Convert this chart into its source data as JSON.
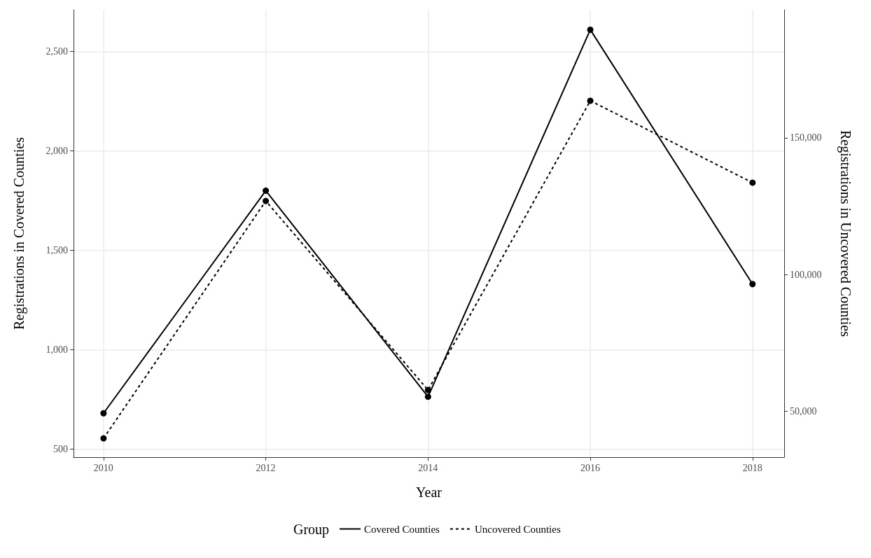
{
  "chart_data": {
    "type": "line",
    "xlabel": "Year",
    "ylabel": "Registrations in Covered Counties",
    "y2label": "Registrations in Uncovered Counties",
    "legend_title": "Group",
    "x": [
      2010,
      2012,
      2014,
      2016,
      2018
    ],
    "series": [
      {
        "name": "Covered Counties",
        "color": "#000000",
        "line_style": "solid",
        "values": [
          680,
          1800,
          763,
          2610,
          1330
        ]
      },
      {
        "name": "Uncovered Counties",
        "color": "#000000",
        "line_style": "dashed",
        "axis": "y2",
        "values": [
          40000,
          126900,
          57700,
          163600,
          133600
        ]
      }
    ],
    "xlim": [
      2009.63,
      2018.39
    ],
    "xticks": [
      2010,
      2012,
      2014,
      2016,
      2018
    ],
    "ylim": [
      459,
      2710
    ],
    "yticks": [
      {
        "value": 500,
        "label": "500"
      },
      {
        "value": 1000,
        "label": "1,000"
      },
      {
        "value": 1500,
        "label": "1,500"
      },
      {
        "value": 2000,
        "label": "2,000"
      },
      {
        "value": 2500,
        "label": "2,500"
      }
    ],
    "y2lim": [
      33100,
      196900
    ],
    "y2ticks": [
      {
        "value": 50000,
        "label": "50,000"
      },
      {
        "value": 100000,
        "label": "100,000"
      },
      {
        "value": 150000,
        "label": "150,000"
      }
    ],
    "grid": true,
    "legend": "bottom",
    "marker": "circle"
  }
}
